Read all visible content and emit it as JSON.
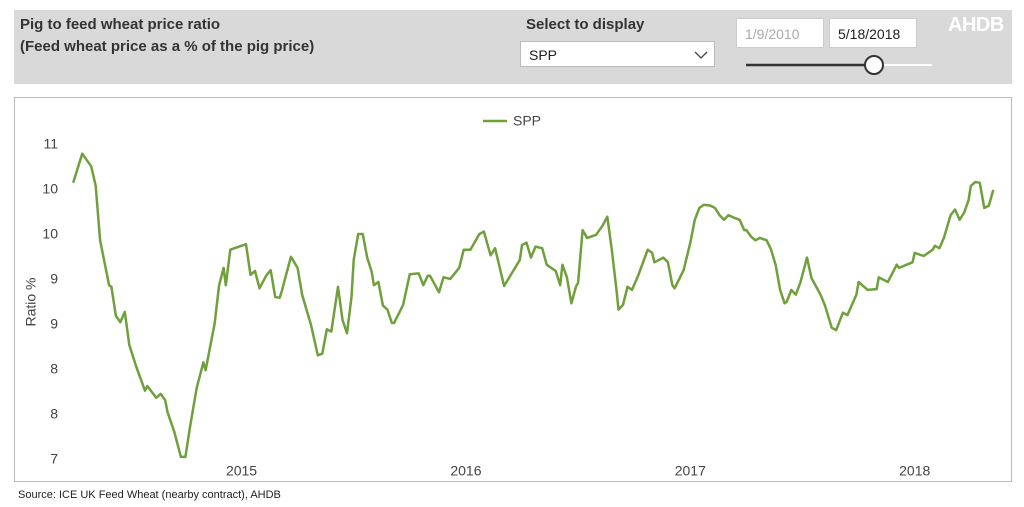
{
  "header": {
    "title_line1": "Pig to feed wheat price ratio",
    "title_line2": "(Feed wheat price as a % of the pig price)",
    "select_label": "Select to display",
    "logo": "AHDB"
  },
  "controls": {
    "dropdown_value": "SPP",
    "start_date": "1/9/2010",
    "end_date": "5/18/2018"
  },
  "source": "Source:  ICE UK Feed Wheat (nearby contract), AHDB",
  "chart_data": {
    "type": "line",
    "y_label": "Ratio %",
    "legend": "top",
    "x": [
      2014.25,
      2014.29,
      2014.33,
      2014.35,
      2014.37,
      2014.41,
      2014.42,
      2014.44,
      2014.46,
      2014.48,
      2014.5,
      2014.53,
      2014.57,
      2014.58,
      2014.62,
      2014.64,
      2014.66,
      2014.67,
      2014.7,
      2014.73,
      2014.75,
      2014.77,
      2014.8,
      2014.83,
      2014.84,
      2014.88,
      2014.9,
      2014.92,
      2014.93,
      2014.95,
      2015.02,
      2015.04,
      2015.06,
      2015.08,
      2015.11,
      2015.13,
      2015.15,
      2015.17,
      2015.18,
      2015.22,
      2015.25,
      2015.27,
      2015.31,
      2015.34,
      2015.36,
      2015.38,
      2015.4,
      2015.43,
      2015.45,
      2015.47,
      2015.49,
      2015.5,
      2015.52,
      2015.54,
      2015.56,
      2015.58,
      2015.59,
      2015.61,
      2015.63,
      2015.65,
      2015.67,
      2015.68,
      2015.72,
      2015.75,
      2015.79,
      2015.81,
      2015.83,
      2015.84,
      2015.88,
      2015.9,
      2015.93,
      2015.97,
      2015.99,
      2016.02,
      2016.06,
      2016.08,
      2016.11,
      2016.13,
      2016.17,
      2016.2,
      2016.24,
      2016.25,
      2016.27,
      2016.29,
      2016.31,
      2016.34,
      2016.36,
      2016.4,
      2016.42,
      2016.43,
      2016.45,
      2016.47,
      2016.49,
      2016.5,
      2016.52,
      2016.54,
      2016.58,
      2016.61,
      2016.63,
      2016.65,
      2016.67,
      2016.68,
      2016.7,
      2016.72,
      2016.74,
      2016.77,
      2016.81,
      2016.83,
      2016.84,
      2016.88,
      2016.9,
      2016.92,
      2016.93,
      2016.97,
      2017.0,
      2017.02,
      2017.04,
      2017.06,
      2017.09,
      2017.11,
      2017.13,
      2017.15,
      2017.17,
      2017.2,
      2017.22,
      2017.24,
      2017.25,
      2017.27,
      2017.29,
      2017.31,
      2017.34,
      2017.36,
      2017.38,
      2017.4,
      2017.42,
      2017.43,
      2017.45,
      2017.47,
      2017.49,
      2017.52,
      2017.54,
      2017.58,
      2017.6,
      2017.61,
      2017.63,
      2017.65,
      2017.68,
      2017.7,
      2017.74,
      2017.75,
      2017.79,
      2017.83,
      2017.84,
      2017.88,
      2017.92,
      2017.93,
      2017.99,
      2018.0,
      2018.04,
      2018.08,
      2018.09,
      2018.11,
      2018.13,
      2018.16,
      2018.18,
      2018.2,
      2018.22,
      2018.24,
      2018.25,
      2018.27,
      2018.29,
      2018.31,
      2018.33,
      2018.35
    ],
    "series": [
      {
        "name": "SPP",
        "color": "#70a03c",
        "values": [
          10.52,
          10.89,
          10.73,
          10.48,
          9.79,
          9.22,
          9.2,
          8.83,
          8.75,
          8.88,
          8.46,
          8.19,
          7.88,
          7.94,
          7.79,
          7.84,
          7.76,
          7.61,
          7.36,
          7.04,
          7.04,
          7.41,
          7.91,
          8.24,
          8.14,
          8.73,
          9.22,
          9.44,
          9.22,
          9.67,
          9.74,
          9.35,
          9.4,
          9.18,
          9.34,
          9.41,
          9.07,
          9.06,
          9.15,
          9.58,
          9.44,
          9.1,
          8.71,
          8.33,
          8.35,
          8.66,
          8.63,
          9.2,
          8.78,
          8.61,
          9.07,
          9.54,
          9.87,
          9.87,
          9.57,
          9.39,
          9.22,
          9.26,
          8.96,
          8.91,
          8.74,
          8.74,
          8.97,
          9.36,
          9.37,
          9.22,
          9.34,
          9.34,
          9.13,
          9.32,
          9.3,
          9.44,
          9.67,
          9.67,
          9.87,
          9.9,
          9.6,
          9.69,
          9.21,
          9.35,
          9.54,
          9.73,
          9.76,
          9.57,
          9.71,
          9.69,
          9.48,
          9.4,
          9.22,
          9.48,
          9.32,
          8.99,
          9.2,
          9.25,
          9.92,
          9.82,
          9.86,
          9.98,
          10.09,
          9.67,
          9.18,
          8.91,
          8.97,
          9.2,
          9.16,
          9.36,
          9.67,
          9.63,
          9.51,
          9.57,
          9.51,
          9.22,
          9.18,
          9.41,
          9.76,
          10.05,
          10.2,
          10.24,
          10.23,
          10.2,
          10.11,
          10.05,
          10.11,
          10.07,
          10.05,
          9.92,
          9.92,
          9.84,
          9.79,
          9.82,
          9.79,
          9.67,
          9.48,
          9.16,
          8.99,
          9.01,
          9.16,
          9.1,
          9.25,
          9.57,
          9.31,
          9.1,
          8.96,
          8.87,
          8.68,
          8.65,
          8.87,
          8.84,
          9.1,
          9.26,
          9.16,
          9.17,
          9.32,
          9.26,
          9.48,
          9.44,
          9.51,
          9.63,
          9.59,
          9.67,
          9.72,
          9.69,
          9.82,
          10.11,
          10.18,
          10.05,
          10.14,
          10.3,
          10.48,
          10.53,
          10.52,
          10.2,
          10.23,
          10.43
        ]
      }
    ],
    "xlim": [
      2014.2,
      2018.38
    ],
    "xticks": [
      2015,
      2016,
      2017,
      2018
    ],
    "ylim": [
      7,
      11
    ],
    "yticks": [
      7,
      {
        "value": 7.571,
        "label": "8"
      },
      {
        "value": 8.143,
        "label": "8"
      },
      {
        "value": 8.714,
        "label": "9"
      },
      {
        "value": 9.286,
        "label": "9"
      },
      {
        "value": 9.857,
        "label": "10"
      },
      {
        "value": 10.429,
        "label": "10"
      },
      11
    ],
    "grid": false
  }
}
